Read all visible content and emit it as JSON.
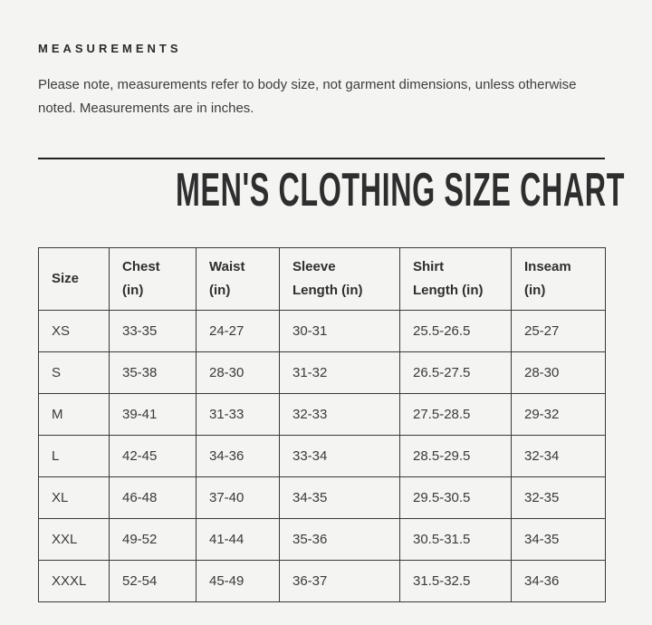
{
  "section": {
    "eyebrow": "MEASUREMENTS",
    "note": "Please note, measurements refer to body size, not garment dimensions, unless otherwise noted. Measurements are in inches.",
    "title": "MEN'S CLOTHING SIZE CHART"
  },
  "table": {
    "columns": [
      {
        "key": "size",
        "label": "Size"
      },
      {
        "key": "chest",
        "label": "Chest\n(in)"
      },
      {
        "key": "waist",
        "label": "Waist\n(in)"
      },
      {
        "key": "sleeve",
        "label": "Sleeve\nLength (in)"
      },
      {
        "key": "shirt",
        "label": "Shirt\nLength (in)"
      },
      {
        "key": "inseam",
        "label": "Inseam\n(in)"
      }
    ],
    "rows": [
      {
        "cells": [
          "XS",
          "33-35",
          "24-27",
          "30-31",
          "25.5-26.5",
          "25-27"
        ]
      },
      {
        "cells": [
          "S",
          "35-38",
          "28-30",
          "31-32",
          "26.5-27.5",
          "28-30"
        ]
      },
      {
        "cells": [
          "M",
          "39-41",
          "31-33",
          "32-33",
          "27.5-28.5",
          "29-32"
        ]
      },
      {
        "cells": [
          "L",
          "42-45",
          "34-36",
          "33-34",
          "28.5-29.5",
          "32-34"
        ]
      },
      {
        "cells": [
          "XL",
          "46-48",
          "37-40",
          "34-35",
          "29.5-30.5",
          "32-35"
        ]
      },
      {
        "cells": [
          "XXL",
          "49-52",
          "41-44",
          "35-36",
          "30.5-31.5",
          "34-35"
        ]
      },
      {
        "cells": [
          "XXXL",
          "52-54",
          "45-49",
          "36-37",
          "31.5-32.5",
          "34-36"
        ]
      }
    ]
  },
  "colors": {
    "background": "#f4f4f2",
    "text": "#3a3a3a",
    "border": "#3a3a3a",
    "divider": "#222222"
  }
}
